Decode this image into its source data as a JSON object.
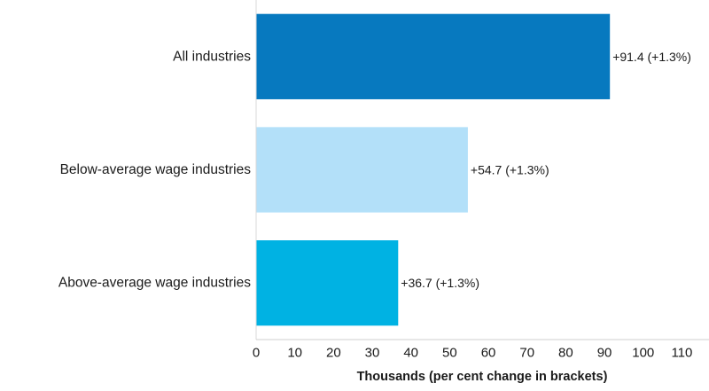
{
  "chart_data": {
    "type": "bar",
    "orientation": "horizontal",
    "categories": [
      "All industries",
      "Below-average wage industries",
      "Above-average wage industries"
    ],
    "values": [
      91.4,
      54.7,
      36.7
    ],
    "data_labels": [
      "+91.4 (+1.3%)",
      "+54.7 (+1.3%)",
      "+36.7 (+1.3%)"
    ],
    "colors": [
      "#0779BF",
      "#B3E0F9",
      "#00B2E3"
    ],
    "xlabel": "Thousands (per cent change in brackets)",
    "ylabel": "",
    "title": "",
    "xlim": [
      0,
      117
    ],
    "xticks": [
      0,
      10,
      20,
      30,
      40,
      50,
      60,
      70,
      80,
      90,
      100,
      110
    ],
    "grid": false,
    "legend": "none"
  }
}
